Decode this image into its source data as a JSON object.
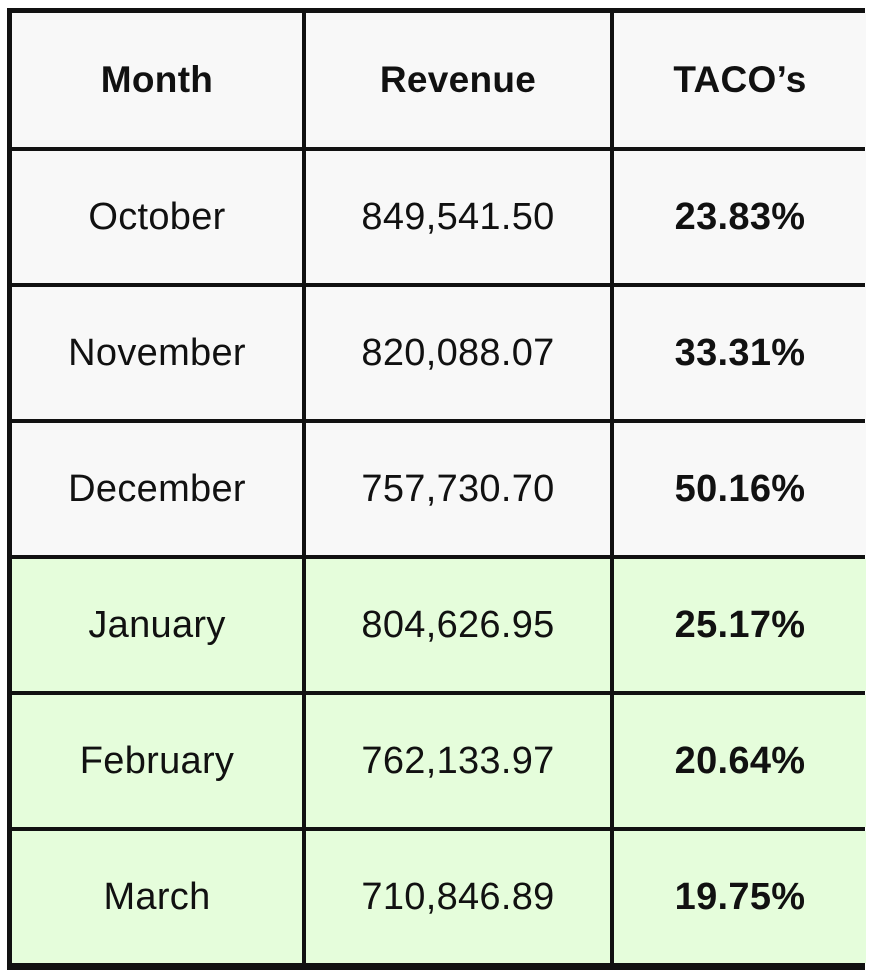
{
  "colors": {
    "border": "#111111",
    "base_row_bg": "#f8f8f8",
    "highlight_row_bg": "#e5fddb",
    "text": "#111111"
  },
  "table": {
    "headers": [
      "Month",
      "Revenue",
      "TACO’s"
    ],
    "rows": [
      {
        "month": "October",
        "revenue": "849,541.50",
        "taco": "23.83%",
        "highlight": false
      },
      {
        "month": "November",
        "revenue": "820,088.07",
        "taco": "33.31%",
        "highlight": false
      },
      {
        "month": "December",
        "revenue": "757,730.70",
        "taco": "50.16%",
        "highlight": false
      },
      {
        "month": "January",
        "revenue": "804,626.95",
        "taco": "25.17%",
        "highlight": true
      },
      {
        "month": "February",
        "revenue": "762,133.97",
        "taco": "20.64%",
        "highlight": true
      },
      {
        "month": "March",
        "revenue": "710,846.89",
        "taco": "19.75%",
        "highlight": true
      }
    ]
  }
}
